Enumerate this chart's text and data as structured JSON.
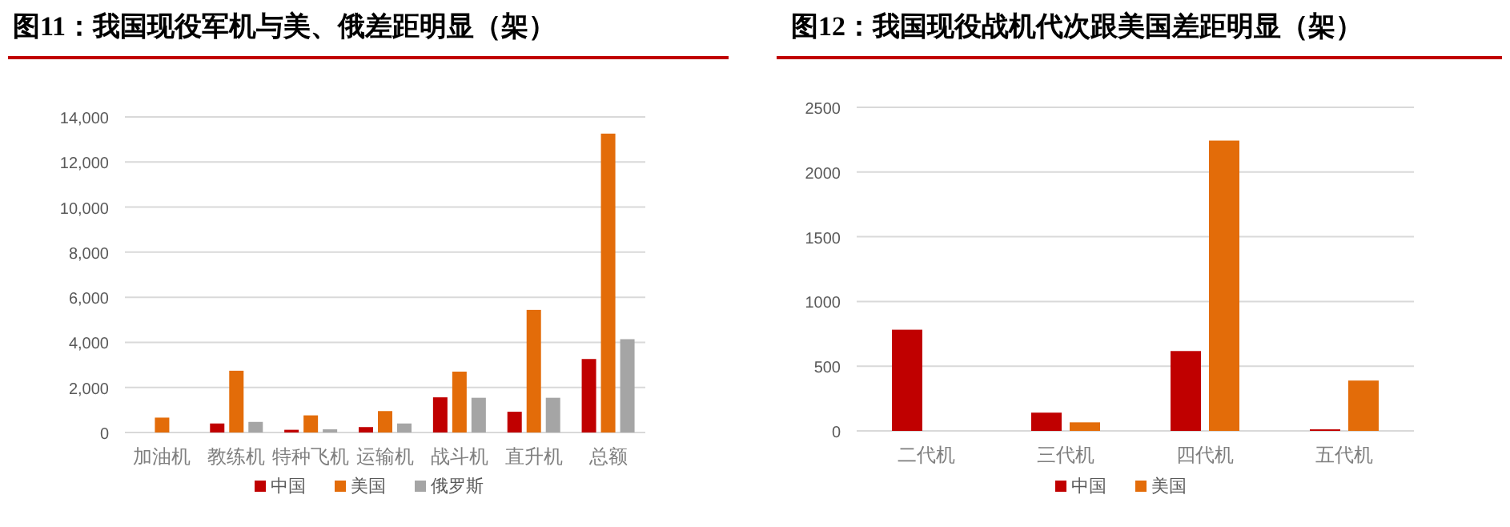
{
  "chart_data": [
    {
      "type": "bar",
      "title": "图11：我国现役军机与美、俄差距明显（架）",
      "categories": [
        "加油机",
        "教练机",
        "特种飞机",
        "运输机",
        "战斗机",
        "直升机",
        "总额"
      ],
      "series": [
        {
          "name": "中国",
          "color": "#c00000",
          "values": [
            null,
            400,
            120,
            240,
            1560,
            920,
            3260
          ]
        },
        {
          "name": "美国",
          "color": "#e36c09",
          "values": [
            660,
            2740,
            760,
            950,
            2700,
            5440,
            13260
          ]
        },
        {
          "name": "俄罗斯",
          "color": "#a5a5a5",
          "values": [
            null,
            470,
            140,
            400,
            1540,
            1540,
            4140
          ]
        }
      ],
      "ylim": [
        0,
        14000
      ],
      "yticks": [
        0,
        {
          "value": 2000,
          "label": "2,000"
        },
        {
          "value": 4000,
          "label": "4,000"
        },
        {
          "value": 6000,
          "label": "6,000"
        },
        {
          "value": 8000,
          "label": "8,000"
        },
        {
          "value": 10000,
          "label": "10,000"
        },
        {
          "value": 12000,
          "label": "12,000"
        },
        {
          "value": 14000,
          "label": "14,000"
        }
      ],
      "grid": "y",
      "legend": "bottom"
    },
    {
      "type": "bar",
      "title": "图12：我国现役战机代次跟美国差距明显（架）",
      "categories": [
        "二代机",
        "三代机",
        "四代机",
        "五代机"
      ],
      "series": [
        {
          "name": "中国",
          "color": "#c00000",
          "values": [
            782,
            141,
            617,
            12
          ]
        },
        {
          "name": "美国",
          "color": "#e36c09",
          "values": [
            null,
            66,
            2243,
            389
          ]
        }
      ],
      "ylim": [
        0,
        2500
      ],
      "yticks": [
        0,
        500,
        1000,
        1500,
        2000,
        2500
      ],
      "grid": "y",
      "legend": "bottom"
    }
  ]
}
